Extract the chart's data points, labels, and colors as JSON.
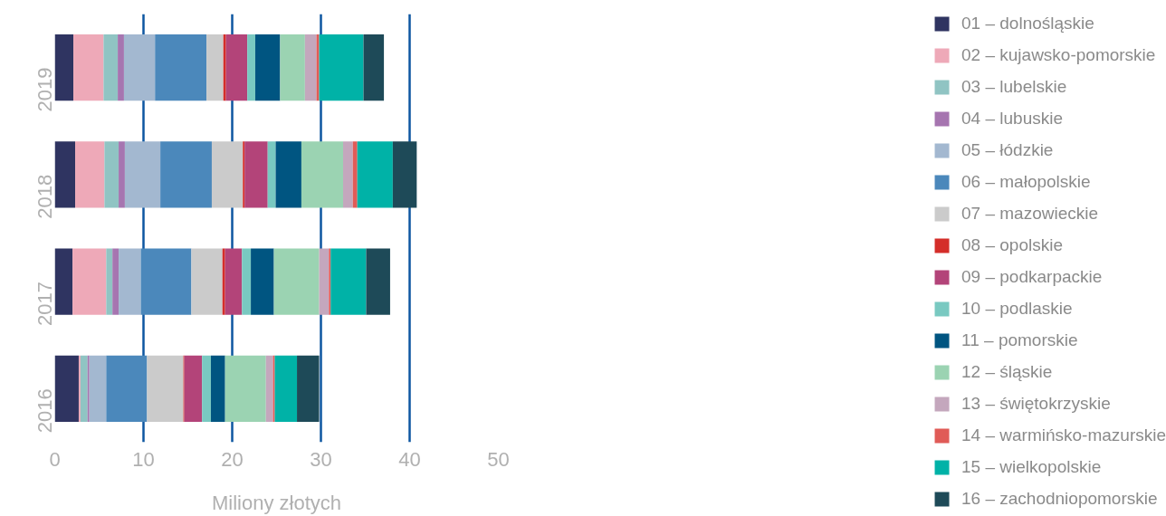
{
  "chart_data": {
    "type": "bar",
    "orientation": "horizontal",
    "stacked": true,
    "xlabel": "Miliony złotych",
    "categories": [
      "2019",
      "2018",
      "2017",
      "2016"
    ],
    "xlim": [
      0,
      50
    ],
    "xticks": [
      0,
      10,
      20,
      30,
      40,
      50
    ],
    "grid": "x",
    "legend": "right",
    "series": [
      {
        "name": "01 – dolnośląskie",
        "color": "#2f3461",
        "values": [
          2.1,
          2.3,
          2.0,
          2.7
        ]
      },
      {
        "name": "02 – kujawsko-pomorskie",
        "color": "#eea9b8",
        "values": [
          3.4,
          3.3,
          3.8,
          0.2
        ]
      },
      {
        "name": "03 – lubelskie",
        "color": "#90c4c3",
        "values": [
          1.6,
          1.6,
          0.7,
          0.8
        ]
      },
      {
        "name": "04 – lubuskie",
        "color": "#a675b0",
        "values": [
          0.7,
          0.7,
          0.7,
          0.2
        ]
      },
      {
        "name": "05 – łódzkie",
        "color": "#a3b8d0",
        "values": [
          3.5,
          4.0,
          2.5,
          1.9
        ]
      },
      {
        "name": "06 – małopolskie",
        "color": "#4b88bb",
        "values": [
          5.8,
          5.8,
          5.7,
          4.6
        ]
      },
      {
        "name": "07 – mazowieckie",
        "color": "#cbcbcb",
        "values": [
          1.9,
          3.5,
          3.5,
          4.1
        ]
      },
      {
        "name": "08 – opolskie",
        "color": "#d42e2a",
        "values": [
          0.3,
          0.2,
          0.3,
          0.1
        ]
      },
      {
        "name": "09 – podkarpackie",
        "color": "#b34479",
        "values": [
          2.4,
          2.6,
          1.9,
          2.0
        ]
      },
      {
        "name": "10 – podlaskie",
        "color": "#79c9c1",
        "values": [
          0.9,
          0.9,
          1.0,
          1.0
        ]
      },
      {
        "name": "11 – pomorskie",
        "color": "#005581",
        "values": [
          2.8,
          2.9,
          2.6,
          1.6
        ]
      },
      {
        "name": "12 – śląskie",
        "color": "#9bd3b2",
        "values": [
          2.8,
          4.7,
          5.1,
          4.6
        ]
      },
      {
        "name": "13 – świętokrzyskie",
        "color": "#c4a7bd",
        "values": [
          1.3,
          1.1,
          1.1,
          0.8
        ]
      },
      {
        "name": "14 – warmińsko-mazurskie",
        "color": "#e05b57",
        "values": [
          0.3,
          0.5,
          0.2,
          0.2
        ]
      },
      {
        "name": "15 – wielkopolskie",
        "color": "#00b2a7",
        "values": [
          5.0,
          4.0,
          4.0,
          2.5
        ]
      },
      {
        "name": "16 – zachodniopomorskie",
        "color": "#1e4a58",
        "values": [
          2.3,
          2.7,
          2.7,
          2.5
        ]
      }
    ]
  }
}
